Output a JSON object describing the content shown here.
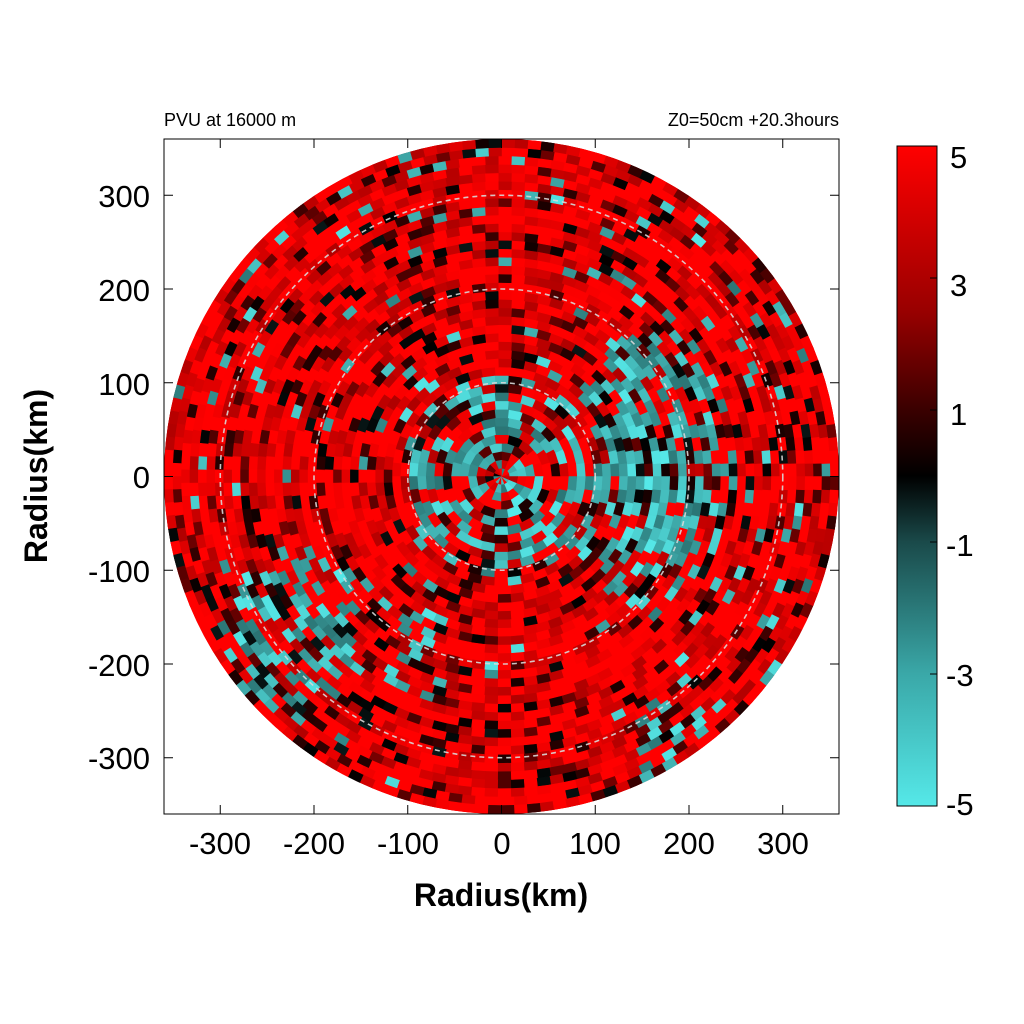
{
  "chart_data": {
    "type": "heatmap",
    "title_left": "PVU at 16000 m",
    "title_right": "Z0=50cm  +20.3hours",
    "xlabel": "Radius(km)",
    "ylabel": "Radius(km)",
    "xlim": [
      -360,
      360
    ],
    "ylim": [
      -360,
      360
    ],
    "x_ticks": [
      -300,
      -200,
      -100,
      0,
      100,
      200,
      300
    ],
    "y_ticks": [
      300,
      200,
      100,
      0,
      -100,
      -200,
      -300
    ],
    "data_domain_radius_km": 360,
    "range_rings_km": [
      100,
      200,
      300
    ],
    "colorbar": {
      "range": [
        -5,
        5
      ],
      "tick_values": [
        5,
        3,
        1,
        -1,
        -3,
        -5
      ],
      "tick_labels": [
        "5",
        "3",
        "1",
        "-1",
        "-3",
        "-5"
      ],
      "colors": {
        "low": "#55e8e8",
        "mid": "#000000",
        "high": "#ff0000"
      }
    },
    "field_description": "Potential vorticity (PVU) plan view; mostly positive (red) with negative (cyan) patches concentrated east of center (x 100-250 km, y -150 to 150 km), near the center, and southwest (x -250 to -150 km, y -150 to -250 km)"
  }
}
